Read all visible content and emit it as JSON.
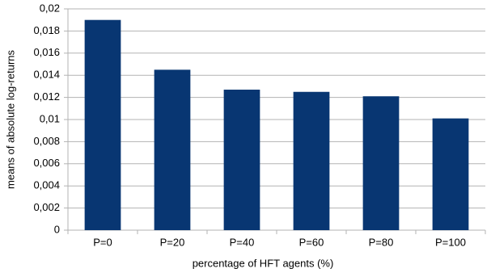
{
  "chart_data": {
    "type": "bar",
    "x_label": "percentage of HFT agents (%)",
    "y_label": "means of absolute log-returns",
    "categories": [
      "P=0",
      "P=20",
      "P=40",
      "P=60",
      "P=80",
      "P=100"
    ],
    "values": [
      0.019,
      0.0145,
      0.0127,
      0.0125,
      0.0121,
      0.0101
    ],
    "color": "#083672",
    "ylim": [
      0,
      0.02
    ],
    "yticks": [
      0,
      {
        "value": 0.002,
        "label": "0,002"
      },
      {
        "value": 0.004,
        "label": "0,004"
      },
      {
        "value": 0.006,
        "label": "0,006"
      },
      {
        "value": 0.008,
        "label": "0,008"
      },
      {
        "value": 0.01,
        "label": "0,01"
      },
      {
        "value": 0.012,
        "label": "0,012"
      },
      {
        "value": 0.014,
        "label": "0,014"
      },
      {
        "value": 0.016,
        "label": "0,016"
      },
      {
        "value": 0.018,
        "label": "0,018"
      },
      {
        "value": 0.02,
        "label": "0,02"
      }
    ],
    "grid": true
  }
}
